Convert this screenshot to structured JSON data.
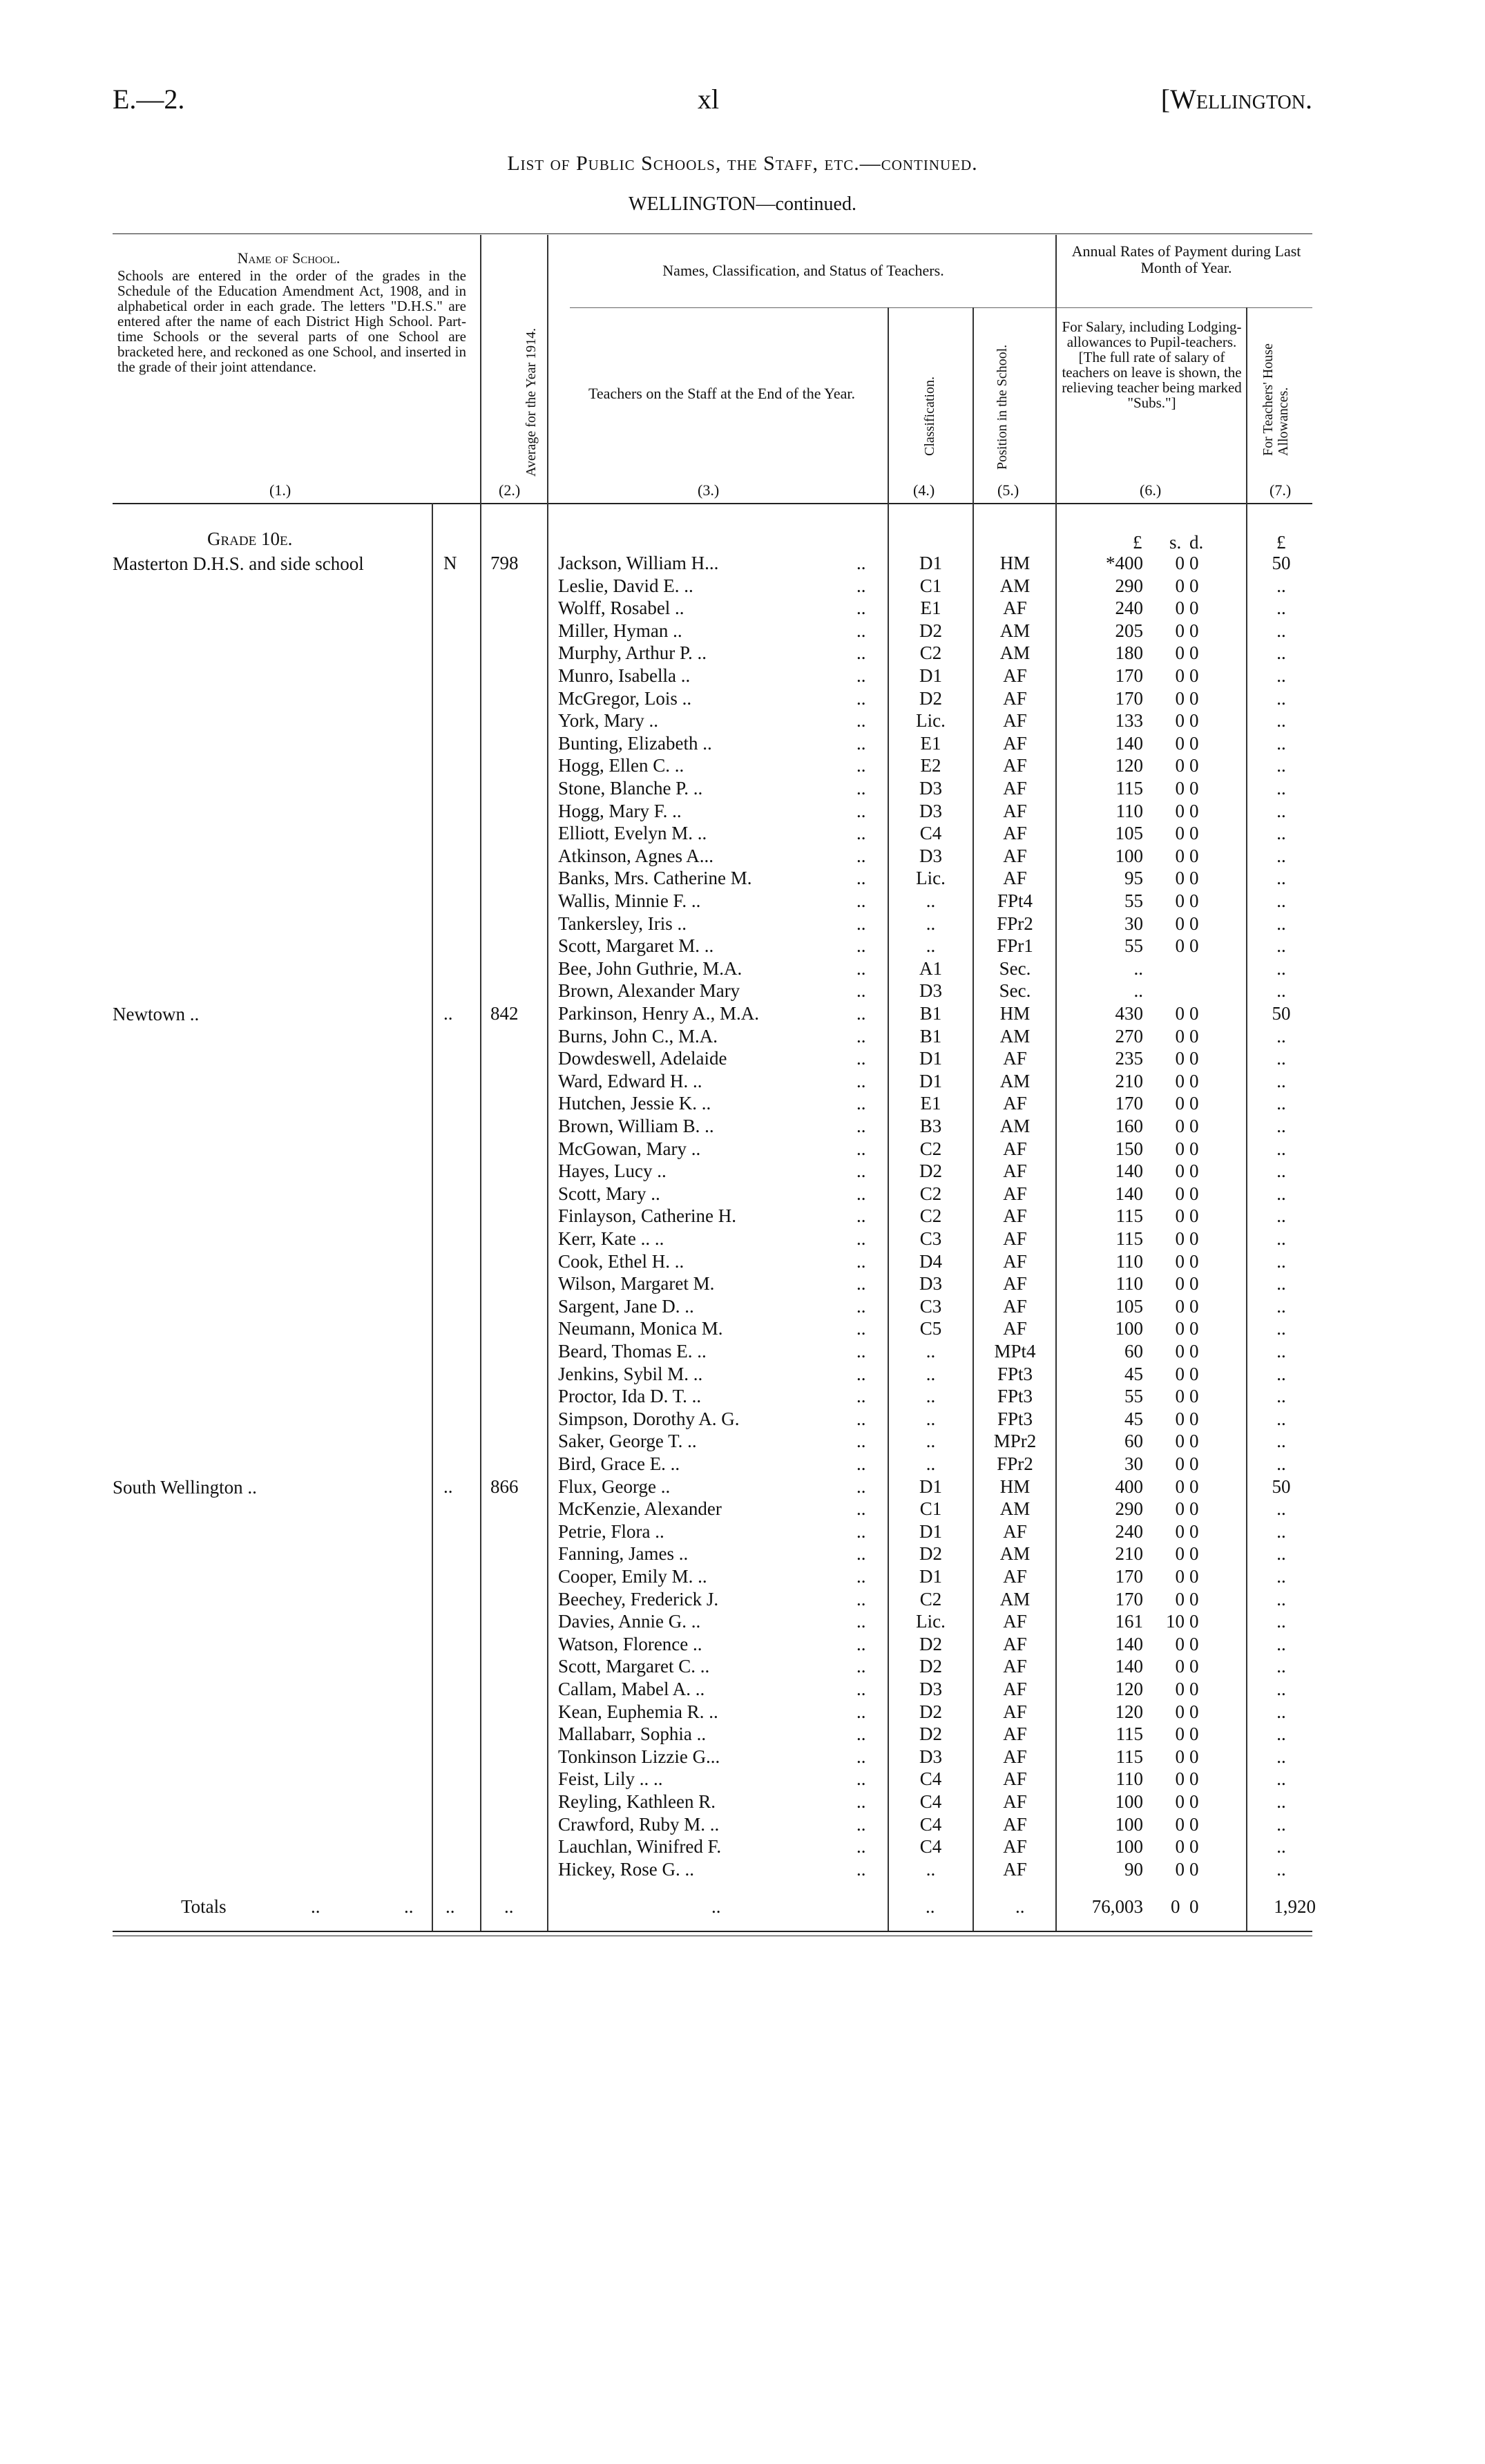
{
  "header": {
    "left": "E.—2.",
    "center": "xl",
    "right": "[Wellington."
  },
  "title": "List of Public Schools, the Staff, etc.—continued.",
  "subtitle": "WELLINGTON—continued.",
  "columns": {
    "c1_title": "Name of School.",
    "c1_note": "Schools are entered in the order of the grades in the Schedule of the Education Amendment Act, 1908, and in alphabetical order in each grade. The letters \"D.H.S.\" are entered after the name of each District High School. Part-time Schools or the several parts of one School are bracketed here, and reckoned as one School, and inserted in the grade of their joint attendance.",
    "c1_num": "(1.)",
    "c2": "Average for the Year 1914.",
    "c2_num": "(2.)",
    "group3": "Names, Classification, and Status of Teachers.",
    "c3": "Teachers on the Staff at the End of the Year.",
    "c3_num": "(3.)",
    "c4": "Classification.",
    "c4_num": "(4.)",
    "c5": "Position in the School.",
    "c5_num": "(5.)",
    "group6": "Annual Rates of Payment during Last Month of Year.",
    "c6": "For Salary, including Lodging-allowances to Pupil-teachers. [The full rate of salary of teachers on leave is shown, the relieving teacher being marked \"Subs.\"]",
    "c6_num": "(6.)",
    "c7": "For Teachers' House Allowances.",
    "c7_num": "(7.)",
    "units": {
      "pounds": "£",
      "s": "s.",
      "d": "d.",
      "house": "£"
    }
  },
  "grade": "Grade 10e.",
  "schools": [
    {
      "name": "Masterton D.H.S. and side school",
      "mark": "N",
      "average": "798",
      "rows": [
        [
          "Jackson, William H...",
          "D1",
          "HM",
          "*400",
          "0",
          "0",
          "50"
        ],
        [
          "Leslie, David E.  ..",
          "C1",
          "AM",
          "290",
          "0",
          "0",
          ".."
        ],
        [
          "Wolff, Rosabel  ..",
          "E1",
          "AF",
          "240",
          "0",
          "0",
          ".."
        ],
        [
          "Miller, Hyman  ..",
          "D2",
          "AM",
          "205",
          "0",
          "0",
          ".."
        ],
        [
          "Murphy, Arthur P. ..",
          "C2",
          "AM",
          "180",
          "0",
          "0",
          ".."
        ],
        [
          "Munro, Isabella  ..",
          "D1",
          "AF",
          "170",
          "0",
          "0",
          ".."
        ],
        [
          "McGregor, Lois  ..",
          "D2",
          "AF",
          "170",
          "0",
          "0",
          ".."
        ],
        [
          "York, Mary  ..",
          "Lic.",
          "AF",
          "133",
          "0",
          "0",
          ".."
        ],
        [
          "Bunting, Elizabeth ..",
          "E1",
          "AF",
          "140",
          "0",
          "0",
          ".."
        ],
        [
          "Hogg, Ellen C.  ..",
          "E2",
          "AF",
          "120",
          "0",
          "0",
          ".."
        ],
        [
          "Stone, Blanche P.  ..",
          "D3",
          "AF",
          "115",
          "0",
          "0",
          ".."
        ],
        [
          "Hogg, Mary F.  ..",
          "D3",
          "AF",
          "110",
          "0",
          "0",
          ".."
        ],
        [
          "Elliott, Evelyn M.  ..",
          "C4",
          "AF",
          "105",
          "0",
          "0",
          ".."
        ],
        [
          "Atkinson, Agnes A...",
          "D3",
          "AF",
          "100",
          "0",
          "0",
          ".."
        ],
        [
          "Banks, Mrs. Catherine M.",
          "Lic.",
          "AF",
          "95",
          "0",
          "0",
          ".."
        ],
        [
          "Wallis, Minnie F.  ..",
          "..",
          "FPt4",
          "55",
          "0",
          "0",
          ".."
        ],
        [
          "Tankersley, Iris  ..",
          "..",
          "FPr2",
          "30",
          "0",
          "0",
          ".."
        ],
        [
          "Scott, Margaret M. ..",
          "..",
          "FPr1",
          "55",
          "0",
          "0",
          ".."
        ],
        [
          "Bee, John Guthrie, M.A.",
          "A1",
          "Sec.",
          "..",
          "",
          "",
          ".."
        ],
        [
          "Brown, Alexander Mary",
          "D3",
          "Sec.",
          "..",
          "",
          "",
          ".."
        ]
      ]
    },
    {
      "name": "Newtown ..",
      "mark": "..",
      "average": "842",
      "rows": [
        [
          "Parkinson, Henry A., M.A.",
          "B1",
          "HM",
          "430",
          "0",
          "0",
          "50"
        ],
        [
          "Burns, John C., M.A.",
          "B1",
          "AM",
          "270",
          "0",
          "0",
          ".."
        ],
        [
          "Dowdeswell, Adelaide",
          "D1",
          "AF",
          "235",
          "0",
          "0",
          ".."
        ],
        [
          "Ward, Edward H.  ..",
          "D1",
          "AM",
          "210",
          "0",
          "0",
          ".."
        ],
        [
          "Hutchen, Jessie K.  ..",
          "E1",
          "AF",
          "170",
          "0",
          "0",
          ".."
        ],
        [
          "Brown, William B.  ..",
          "B3",
          "AM",
          "160",
          "0",
          "0",
          ".."
        ],
        [
          "McGowan, Mary  ..",
          "C2",
          "AF",
          "150",
          "0",
          "0",
          ".."
        ],
        [
          "Hayes, Lucy  ..",
          "D2",
          "AF",
          "140",
          "0",
          "0",
          ".."
        ],
        [
          "Scott, Mary  ..",
          "C2",
          "AF",
          "140",
          "0",
          "0",
          ".."
        ],
        [
          "Finlayson, Catherine H.",
          "C2",
          "AF",
          "115",
          "0",
          "0",
          ".."
        ],
        [
          "Kerr, Kate ..  ..",
          "C3",
          "AF",
          "115",
          "0",
          "0",
          ".."
        ],
        [
          "Cook, Ethel H.  ..",
          "D4",
          "AF",
          "110",
          "0",
          "0",
          ".."
        ],
        [
          "Wilson, Margaret M.",
          "D3",
          "AF",
          "110",
          "0",
          "0",
          ".."
        ],
        [
          "Sargent, Jane D.  ..",
          "C3",
          "AF",
          "105",
          "0",
          "0",
          ".."
        ],
        [
          "Neumann, Monica M.",
          "C5",
          "AF",
          "100",
          "0",
          "0",
          ".."
        ],
        [
          "Beard, Thomas E.  ..",
          "..",
          "MPt4",
          "60",
          "0",
          "0",
          ".."
        ],
        [
          "Jenkins, Sybil M.  ..",
          "..",
          "FPt3",
          "45",
          "0",
          "0",
          ".."
        ],
        [
          "Proctor, Ida D. T.  ..",
          "..",
          "FPt3",
          "55",
          "0",
          "0",
          ".."
        ],
        [
          "Simpson, Dorothy A. G.",
          "..",
          "FPt3",
          "45",
          "0",
          "0",
          ".."
        ],
        [
          "Saker, George T.  ..",
          "..",
          "MPr2",
          "60",
          "0",
          "0",
          ".."
        ],
        [
          "Bird, Grace E.  ..",
          "..",
          "FPr2",
          "30",
          "0",
          "0",
          ".."
        ]
      ]
    },
    {
      "name": "South Wellington ..",
      "mark": "..",
      "average": "866",
      "rows": [
        [
          "Flux, George  ..",
          "D1",
          "HM",
          "400",
          "0",
          "0",
          "50"
        ],
        [
          "McKenzie, Alexander",
          "C1",
          "AM",
          "290",
          "0",
          "0",
          ".."
        ],
        [
          "Petrie, Flora  ..",
          "D1",
          "AF",
          "240",
          "0",
          "0",
          ".."
        ],
        [
          "Fanning, James  ..",
          "D2",
          "AM",
          "210",
          "0",
          "0",
          ".."
        ],
        [
          "Cooper, Emily M.  ..",
          "D1",
          "AF",
          "170",
          "0",
          "0",
          ".."
        ],
        [
          "Beechey, Frederick J.",
          "C2",
          "AM",
          "170",
          "0",
          "0",
          ".."
        ],
        [
          "Davies, Annie G.  ..",
          "Lic.",
          "AF",
          "161",
          "10",
          "0",
          ".."
        ],
        [
          "Watson, Florence  ..",
          "D2",
          "AF",
          "140",
          "0",
          "0",
          ".."
        ],
        [
          "Scott, Margaret C.  ..",
          "D2",
          "AF",
          "140",
          "0",
          "0",
          ".."
        ],
        [
          "Callam, Mabel A.  ..",
          "D3",
          "AF",
          "120",
          "0",
          "0",
          ".."
        ],
        [
          "Kean, Euphemia R. ..",
          "D2",
          "AF",
          "120",
          "0",
          "0",
          ".."
        ],
        [
          "Mallabarr, Sophia ..",
          "D2",
          "AF",
          "115",
          "0",
          "0",
          ".."
        ],
        [
          "Tonkinson Lizzie G...",
          "D3",
          "AF",
          "115",
          "0",
          "0",
          ".."
        ],
        [
          "Feist, Lily ..  ..",
          "C4",
          "AF",
          "110",
          "0",
          "0",
          ".."
        ],
        [
          "Reyling, Kathleen R.",
          "C4",
          "AF",
          "100",
          "0",
          "0",
          ".."
        ],
        [
          "Crawford, Ruby M. ..",
          "C4",
          "AF",
          "100",
          "0",
          "0",
          ".."
        ],
        [
          "Lauchlan, Winifred F.",
          "C4",
          "AF",
          "100",
          "0",
          "0",
          ".."
        ],
        [
          "Hickey, Rose G.  ..",
          "..",
          "AF",
          "90",
          "0",
          "0",
          ".."
        ]
      ]
    }
  ],
  "totals": {
    "label": "Totals",
    "c2": "..",
    "avg": "..",
    "c3": "..",
    "c4": "..",
    "c5": "..",
    "pounds": "76,003",
    "s": "0",
    "d": "0",
    "house": "1,920"
  },
  "leader": ".."
}
